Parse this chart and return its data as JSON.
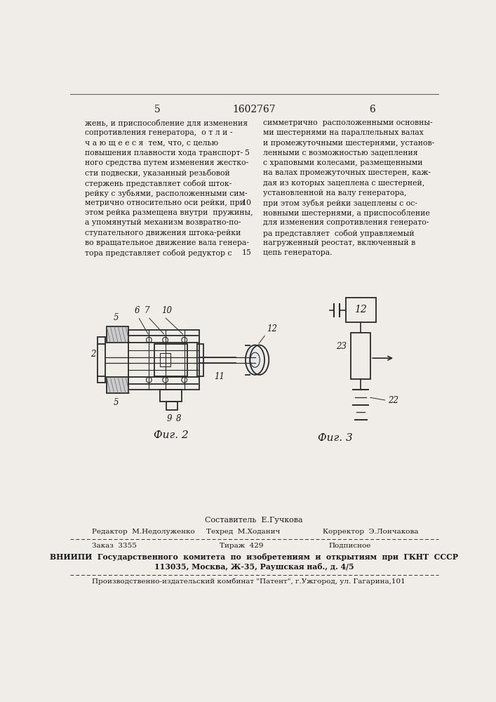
{
  "bg_color": "#f0ede8",
  "page_num_left": "5",
  "page_num_center": "1602767",
  "page_num_right": "6",
  "col_left_lines": [
    "жень, и приспособление для изменения",
    "сопротивления генератора,  о т л и -",
    "ч а ю щ е е с я  тем, что, с целью",
    "повышения плавности хода транспорт-",
    "ного средства путем изменения жестко-",
    "сти подвески, указанный резьбовой",
    "стержень представляет собой шток-",
    "рейку с зубьями, расположенными сим-",
    "метрично относительно оси рейки, при",
    "этом рейка размещена внутри  пружины,",
    "а упомянутый механизм возвратно-по-",
    "ступательного движения штока-рейки",
    "во вращательное движение вала генера-",
    "тора представляет собой редуктор с"
  ],
  "col_right_lines": [
    "симметрично  расположенными основны-",
    "ми шестернями на параллельных валах",
    "и промежуточными шестернями, установ-",
    "ленными с возможностью зацепления",
    "с храповыми колесами, размещенными",
    "на валах промежуточных шестерен, каж-",
    "дая из которых зацеплена с шестерней,",
    "установленной на валу генератора,",
    "при этом зубья рейки зацеплены с ос-",
    "новными шестернями, а приспособление",
    "для изменения сопротивления генерато-",
    "ра представляет  собой управляемый",
    "нагруженный реостат, включенный в",
    "цепь генератора."
  ],
  "fig2_label": "Фиг. 2",
  "fig3_label": "Фиг. 3",
  "footer_author": "Составитель  Е.Гучкова",
  "footer_editor": "Редактор  М.Недолуженко",
  "footer_tech": "Техред  М.Хoданич",
  "footer_corrector": "Корректор  Э.Лончакова",
  "footer_order": "Заказ  3355",
  "footer_print": "Тираж  429",
  "footer_signed": "Подписное",
  "footer_vniipи": "ВНИИПИ  Государственного  комитета  по  изобретениям  и  открытиям  при  ГКНТ  СССР",
  "footer_address": "113035, Москва, Ж-35, Раушская наб., д. 4/5",
  "footer_patent": "Производственно-издательский комбинат \"Патент\", г.Ужгород, ул. Гагарина,101",
  "text_color": "#1a1a1a"
}
